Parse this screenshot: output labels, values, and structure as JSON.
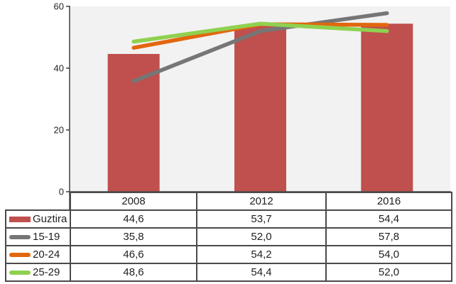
{
  "chart_data": {
    "type": "bar+line",
    "title": "",
    "xlabel": "",
    "ylabel": "",
    "categories": [
      "2008",
      "2012",
      "2016"
    ],
    "series": [
      {
        "name": "Guztira",
        "type": "bar",
        "color": "#bf504d",
        "values": [
          44.6,
          53.7,
          54.4
        ]
      },
      {
        "name": "15-19",
        "type": "line",
        "color": "#767676",
        "values": [
          35.8,
          52.0,
          57.8
        ]
      },
      {
        "name": "20-24",
        "type": "line",
        "color": "#e2670e",
        "values": [
          46.6,
          54.2,
          54.0
        ]
      },
      {
        "name": "25-29",
        "type": "line",
        "color": "#8fd14f",
        "values": [
          48.6,
          54.4,
          52.0
        ]
      }
    ],
    "ylim": [
      0,
      60
    ],
    "yticks": [
      0,
      20,
      40,
      60
    ],
    "grid": false,
    "plot_bg": "#f2f2f2",
    "axis_color": "#4a4a4a",
    "tick_label_color": "#262626",
    "legend_position": "data-table-left-column"
  },
  "table": {
    "rows": [
      {
        "label": "Guztira",
        "values": [
          "44,6",
          "53,7",
          "54,4"
        ]
      },
      {
        "label": "15-19",
        "values": [
          "35,8",
          "52,0",
          "57,8"
        ]
      },
      {
        "label": "20-24",
        "values": [
          "46,6",
          "54,2",
          "54,0"
        ]
      },
      {
        "label": "25-29",
        "values": [
          "48,6",
          "54,4",
          "52,0"
        ]
      }
    ]
  }
}
